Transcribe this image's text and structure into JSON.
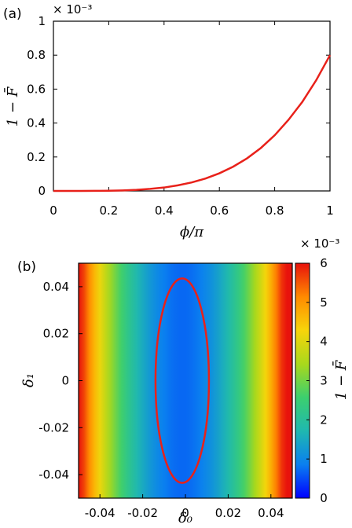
{
  "chart_data": [
    {
      "panel_label": "(a)",
      "type": "line",
      "xlabel": "ϕ/π",
      "ylabel": "1 − F̄",
      "multiplier": "× 10⁻³",
      "xlim": [
        0,
        1
      ],
      "ylim": [
        0,
        1
      ],
      "xticks": [
        "0",
        "0.2",
        "0.4",
        "0.6",
        "0.8",
        "1"
      ],
      "yticks": [
        "0",
        "0.2",
        "0.4",
        "0.6",
        "0.8",
        "1"
      ],
      "series": [
        {
          "color": "#e8211a",
          "x": [
            0,
            0.05,
            0.1,
            0.15,
            0.2,
            0.25,
            0.3,
            0.35,
            0.4,
            0.45,
            0.5,
            0.55,
            0.6,
            0.65,
            0.7,
            0.75,
            0.8,
            0.85,
            0.9,
            0.95,
            1.0
          ],
          "y": [
            0,
            0.0,
            0.0001,
            0.0004,
            0.0013,
            0.0031,
            0.0065,
            0.012,
            0.02,
            0.033,
            0.05,
            0.073,
            0.104,
            0.143,
            0.192,
            0.253,
            0.328,
            0.419,
            0.525,
            0.652,
            0.8
          ]
        }
      ]
    },
    {
      "panel_label": "(b)",
      "type": "heatmap",
      "xlabel": "δ₀",
      "ylabel": "δ₁",
      "colorbar_label": "1 − F̄",
      "multiplier": "× 10⁻³",
      "xlim": [
        -0.05,
        0.05
      ],
      "ylim": [
        -0.05,
        0.05
      ],
      "zlim": [
        0,
        6
      ],
      "xticks": [
        "-0.04",
        "-0.02",
        "0",
        "0.02",
        "0.04"
      ],
      "yticks": [
        "-0.04",
        "-0.02",
        "0",
        "0.02",
        "0.04"
      ],
      "colorbar_ticks": [
        "0",
        "1",
        "2",
        "3",
        "4",
        "5",
        "6"
      ],
      "colormap": [
        "#0000ff",
        "#0a7ff0",
        "#1fb8b0",
        "#3ccf6e",
        "#a9d81c",
        "#f7d50a",
        "#ff8a00",
        "#e8120c"
      ],
      "contour": {
        "color": "#e8211a",
        "center": [
          -0.0015,
          0.0
        ],
        "semi_axis_x": 0.0125,
        "semi_axis_y": 0.0435
      }
    }
  ]
}
